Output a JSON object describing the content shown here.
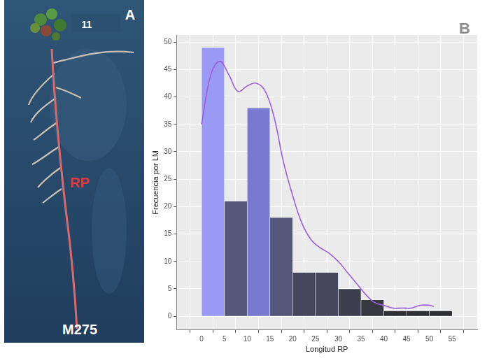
{
  "panels": [
    {
      "letter": "A",
      "photo_labels": {
        "top": "11",
        "middle": "RP",
        "bottom": "M275"
      }
    },
    {
      "letter": "B"
    }
  ],
  "chart_data": {
    "type": "histogram",
    "xlabel": "Longitud RP",
    "ylabel": "Frecuencia por LM",
    "bins": [
      0,
      5,
      10,
      15,
      20,
      25,
      30,
      35,
      40,
      45,
      50,
      55
    ],
    "values": [
      49,
      21,
      38,
      18,
      8,
      8,
      5,
      3,
      1,
      1,
      1
    ],
    "colors": [
      "#9a9af5",
      "#56587a",
      "#7a7ad0",
      "#55577a",
      "#46475c",
      "#46475c",
      "#3e3f4e",
      "#37383f",
      "#2f3034",
      "#2f3034",
      "#2f3034"
    ],
    "xlim": [
      -2.75,
      57.75
    ],
    "xticks": [
      0,
      5,
      10,
      15,
      20,
      25,
      30,
      35,
      40,
      45,
      50,
      55
    ],
    "ylim": [
      -2.5,
      51.3
    ],
    "yticks": [
      0,
      5,
      10,
      15,
      20,
      25,
      30,
      35,
      40,
      45,
      50
    ],
    "grid": true,
    "curve": {
      "type": "line",
      "color": "#9a5fe0",
      "x": [
        0,
        2,
        4,
        6,
        8,
        10,
        12,
        14,
        16,
        18,
        20,
        22,
        24,
        26,
        28,
        30,
        32,
        34,
        36,
        38,
        40,
        42,
        44,
        46,
        48,
        50,
        51
      ],
      "y": [
        35,
        44,
        46.5,
        44,
        41,
        42,
        42.5,
        41,
        36,
        28,
        22,
        17,
        14,
        12.5,
        11.5,
        10,
        8,
        6,
        4,
        2.5,
        2,
        1.5,
        1.5,
        1.5,
        2,
        2,
        1.8
      ]
    }
  }
}
